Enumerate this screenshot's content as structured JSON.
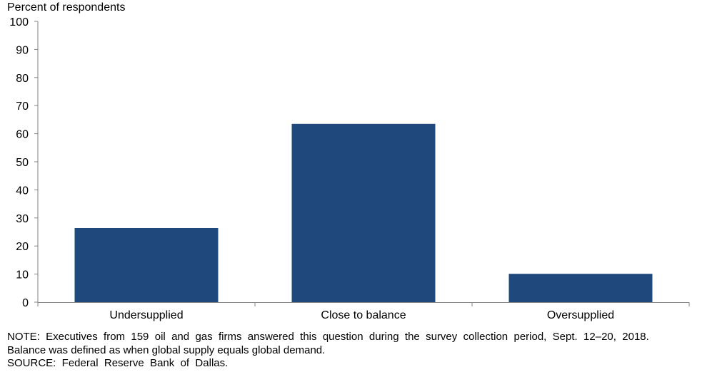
{
  "chart_data": {
    "type": "bar",
    "ylabel": "Percent of respondents",
    "ylim": [
      0,
      100
    ],
    "yticks": [
      0,
      10,
      20,
      30,
      40,
      50,
      60,
      70,
      80,
      90,
      100
    ],
    "categories": [
      "Undersupplied",
      "Close to balance",
      "Oversupplied"
    ],
    "values": [
      26.4,
      63.5,
      10.1
    ],
    "bar_color": "#1F497D",
    "grid": false,
    "legend": "none"
  },
  "notes": {
    "line1": "NOTE:  Executives  from  159  oil  and  gas  firms  answered  this  question  during  the  survey  collection  period,  Sept.  12–20,  2018.",
    "line2": "Balance was defined as when global supply equals global demand.",
    "line3": "SOURCE:  Federal  Reserve  Bank  of  Dallas."
  }
}
